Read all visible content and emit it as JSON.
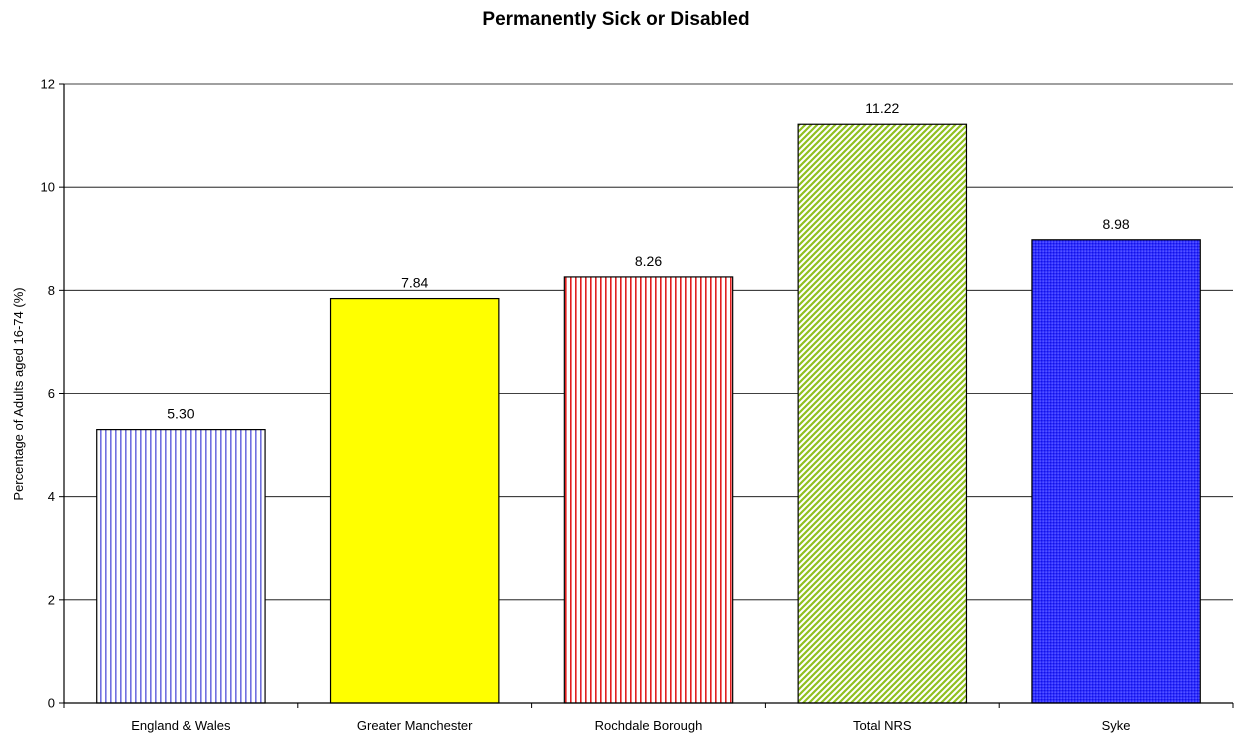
{
  "chart_data": {
    "type": "bar",
    "title": "Permanently Sick or Disabled",
    "xlabel": "",
    "ylabel": "Percentage of Adults aged 16-74 (%)",
    "ylim": [
      0,
      12
    ],
    "yticks": [
      0,
      2,
      4,
      6,
      8,
      10,
      12
    ],
    "grid": true,
    "categories": [
      "England & Wales",
      "Greater Manchester",
      "Rochdale Borough",
      "Total NRS",
      "Syke"
    ],
    "values": [
      5.3,
      7.84,
      8.26,
      11.22,
      8.98
    ],
    "value_labels": [
      "5.30",
      "7.84",
      "8.26",
      "11.22",
      "8.98"
    ],
    "bar_styles": [
      {
        "pattern": "vertical-lines",
        "color": "#7070e0",
        "background": "#ffffff"
      },
      {
        "pattern": "solid",
        "color": "#ffff00",
        "background": "#ffff00"
      },
      {
        "pattern": "vertical-lines",
        "color": "#e02020",
        "background": "#ffffff"
      },
      {
        "pattern": "diagonal-lines",
        "color": "#90c020",
        "background": "#ffffff"
      },
      {
        "pattern": "dots",
        "color": "#1515e0",
        "background": "#2a2aff"
      }
    ]
  }
}
